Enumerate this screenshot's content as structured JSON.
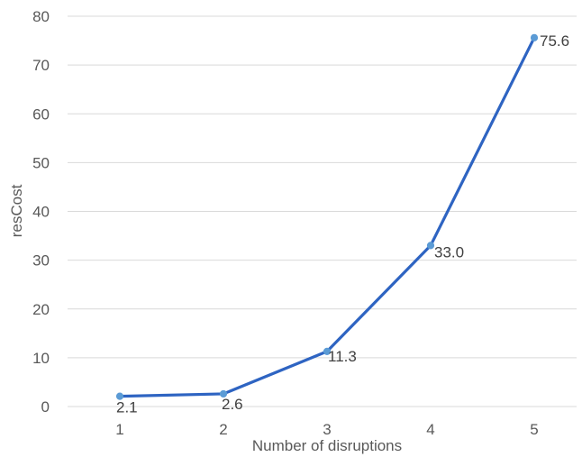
{
  "chart_data": {
    "type": "line",
    "title": "",
    "xlabel": "Number of disruptions",
    "ylabel": "resCost",
    "categories": [
      "1",
      "2",
      "3",
      "4",
      "5"
    ],
    "series": [
      {
        "values": [
          2.1,
          2.6,
          11.3,
          33.0,
          75.6
        ],
        "data_labels": [
          "2.1",
          "2.6",
          "11.3",
          "33.0",
          "75.6"
        ],
        "color": "#2e64c2",
        "marker_color": "#5b9bd5"
      }
    ],
    "ylim": [
      0,
      80
    ],
    "yticks": [
      0,
      10,
      20,
      30,
      40,
      50,
      60,
      70,
      80
    ],
    "grid": true,
    "legend": "none",
    "colors": {
      "gridline": "#d9d9d9",
      "tick_text": "#595959",
      "data_label_text": "#404040"
    }
  }
}
